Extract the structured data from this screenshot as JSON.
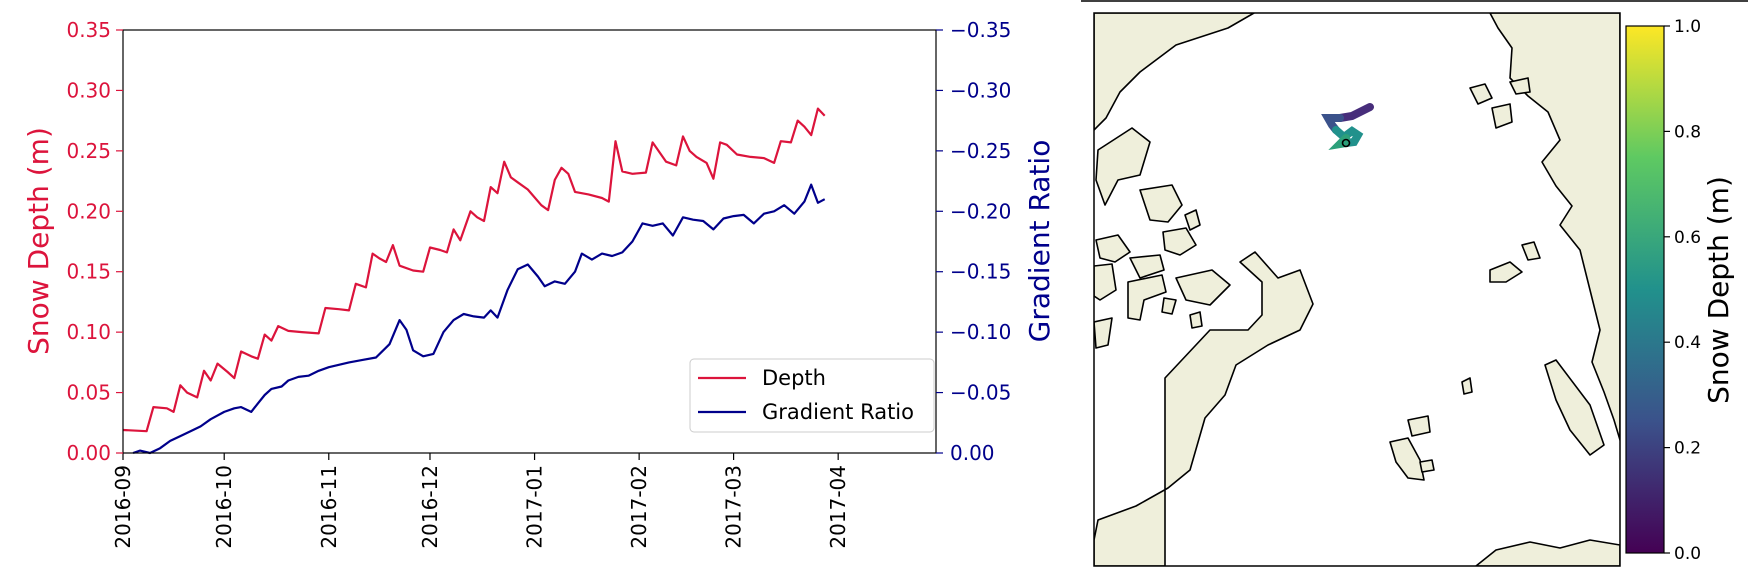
{
  "chart_data": [
    {
      "type": "line",
      "xlabel": "",
      "ylabel": "Snow Depth (m)",
      "y2label": "Gradient Ratio",
      "x_ticks": [
        "2016-09",
        "2016-10",
        "2016-11",
        "2016-12",
        "2017-01",
        "2017-02",
        "2017-03",
        "2017-04"
      ],
      "y_ticks": [
        "0.00",
        "0.05",
        "0.10",
        "0.15",
        "0.20",
        "0.25",
        "0.30",
        "0.35"
      ],
      "y2_ticks": [
        "0.00",
        "−0.05",
        "−0.10",
        "−0.15",
        "−0.20",
        "−0.25",
        "−0.30",
        "−0.35"
      ],
      "xlim": [
        "2016-09-01",
        "2017-04-30"
      ],
      "ylim": [
        0,
        0.35
      ],
      "y2lim": [
        0,
        -0.35
      ],
      "y2_inverted": true,
      "grid": false,
      "legend": "lower-right",
      "colors": {
        "depth": "#dc143c",
        "gradient": "#00008b"
      },
      "series": [
        {
          "name": "Depth",
          "axis": "left",
          "points": [
            [
              "2016-09-01",
              0.019
            ],
            [
              "2016-09-08",
              0.018
            ],
            [
              "2016-09-10",
              0.038
            ],
            [
              "2016-09-14",
              0.037
            ],
            [
              "2016-09-16",
              0.034
            ],
            [
              "2016-09-18",
              0.056
            ],
            [
              "2016-09-20",
              0.05
            ],
            [
              "2016-09-23",
              0.046
            ],
            [
              "2016-09-25",
              0.068
            ],
            [
              "2016-09-27",
              0.06
            ],
            [
              "2016-09-29",
              0.074
            ],
            [
              "2016-10-02",
              0.067
            ],
            [
              "2016-10-04",
              0.062
            ],
            [
              "2016-10-06",
              0.084
            ],
            [
              "2016-10-09",
              0.08
            ],
            [
              "2016-10-11",
              0.078
            ],
            [
              "2016-10-13",
              0.098
            ],
            [
              "2016-10-15",
              0.093
            ],
            [
              "2016-10-17",
              0.105
            ],
            [
              "2016-10-20",
              0.101
            ],
            [
              "2016-10-24",
              0.1
            ],
            [
              "2016-10-29",
              0.099
            ],
            [
              "2016-10-31",
              0.12
            ],
            [
              "2016-11-04",
              0.119
            ],
            [
              "2016-11-07",
              0.118
            ],
            [
              "2016-11-09",
              0.14
            ],
            [
              "2016-11-12",
              0.137
            ],
            [
              "2016-11-14",
              0.165
            ],
            [
              "2016-11-16",
              0.161
            ],
            [
              "2016-11-18",
              0.158
            ],
            [
              "2016-11-20",
              0.172
            ],
            [
              "2016-11-22",
              0.155
            ],
            [
              "2016-11-26",
              0.151
            ],
            [
              "2016-11-29",
              0.15
            ],
            [
              "2016-12-01",
              0.17
            ],
            [
              "2016-12-04",
              0.168
            ],
            [
              "2016-12-06",
              0.166
            ],
            [
              "2016-12-08",
              0.185
            ],
            [
              "2016-12-10",
              0.176
            ],
            [
              "2016-12-13",
              0.2
            ],
            [
              "2016-12-15",
              0.195
            ],
            [
              "2016-12-17",
              0.192
            ],
            [
              "2016-12-19",
              0.22
            ],
            [
              "2016-12-21",
              0.215
            ],
            [
              "2016-12-23",
              0.241
            ],
            [
              "2016-12-25",
              0.228
            ],
            [
              "2016-12-27",
              0.224
            ],
            [
              "2016-12-30",
              0.218
            ],
            [
              "2017-01-03",
              0.205
            ],
            [
              "2017-01-05",
              0.201
            ],
            [
              "2017-01-07",
              0.226
            ],
            [
              "2017-01-09",
              0.236
            ],
            [
              "2017-01-11",
              0.231
            ],
            [
              "2017-01-13",
              0.216
            ],
            [
              "2017-01-17",
              0.214
            ],
            [
              "2017-01-21",
              0.211
            ],
            [
              "2017-01-23",
              0.208
            ],
            [
              "2017-01-25",
              0.258
            ],
            [
              "2017-01-27",
              0.233
            ],
            [
              "2017-01-30",
              0.231
            ],
            [
              "2017-02-03",
              0.232
            ],
            [
              "2017-02-05",
              0.257
            ],
            [
              "2017-02-07",
              0.249
            ],
            [
              "2017-02-09",
              0.241
            ],
            [
              "2017-02-12",
              0.238
            ],
            [
              "2017-02-14",
              0.262
            ],
            [
              "2017-02-16",
              0.25
            ],
            [
              "2017-02-18",
              0.245
            ],
            [
              "2017-02-21",
              0.24
            ],
            [
              "2017-02-23",
              0.227
            ],
            [
              "2017-02-25",
              0.257
            ],
            [
              "2017-02-27",
              0.255
            ],
            [
              "2017-03-02",
              0.247
            ],
            [
              "2017-03-06",
              0.245
            ],
            [
              "2017-03-10",
              0.244
            ],
            [
              "2017-03-13",
              0.24
            ],
            [
              "2017-03-15",
              0.258
            ],
            [
              "2017-03-18",
              0.257
            ],
            [
              "2017-03-20",
              0.275
            ],
            [
              "2017-03-22",
              0.27
            ],
            [
              "2017-03-24",
              0.263
            ],
            [
              "2017-03-26",
              0.285
            ],
            [
              "2017-03-28",
              0.279
            ]
          ]
        },
        {
          "name": "Gradient Ratio",
          "axis": "right",
          "points": [
            [
              "2016-09-04",
              0.0
            ],
            [
              "2016-09-06",
              -0.002
            ],
            [
              "2016-09-09",
              0.0
            ],
            [
              "2016-09-12",
              -0.004
            ],
            [
              "2016-09-15",
              -0.01
            ],
            [
              "2016-09-18",
              -0.014
            ],
            [
              "2016-09-21",
              -0.018
            ],
            [
              "2016-09-24",
              -0.022
            ],
            [
              "2016-09-27",
              -0.028
            ],
            [
              "2016-10-01",
              -0.034
            ],
            [
              "2016-10-04",
              -0.037
            ],
            [
              "2016-10-06",
              -0.038
            ],
            [
              "2016-10-09",
              -0.034
            ],
            [
              "2016-10-11",
              -0.041
            ],
            [
              "2016-10-13",
              -0.048
            ],
            [
              "2016-10-15",
              -0.053
            ],
            [
              "2016-10-18",
              -0.055
            ],
            [
              "2016-10-20",
              -0.06
            ],
            [
              "2016-10-23",
              -0.063
            ],
            [
              "2016-10-26",
              -0.064
            ],
            [
              "2016-10-29",
              -0.068
            ],
            [
              "2016-11-01",
              -0.071
            ],
            [
              "2016-11-04",
              -0.073
            ],
            [
              "2016-11-07",
              -0.075
            ],
            [
              "2016-11-11",
              -0.077
            ],
            [
              "2016-11-15",
              -0.079
            ],
            [
              "2016-11-19",
              -0.09
            ],
            [
              "2016-11-22",
              -0.11
            ],
            [
              "2016-11-24",
              -0.102
            ],
            [
              "2016-11-26",
              -0.085
            ],
            [
              "2016-11-29",
              -0.08
            ],
            [
              "2016-12-02",
              -0.082
            ],
            [
              "2016-12-05",
              -0.1
            ],
            [
              "2016-12-08",
              -0.11
            ],
            [
              "2016-12-11",
              -0.115
            ],
            [
              "2016-12-14",
              -0.113
            ],
            [
              "2016-12-17",
              -0.112
            ],
            [
              "2016-12-19",
              -0.118
            ],
            [
              "2016-12-21",
              -0.112
            ],
            [
              "2016-12-24",
              -0.135
            ],
            [
              "2016-12-27",
              -0.152
            ],
            [
              "2016-12-30",
              -0.156
            ],
            [
              "2017-01-02",
              -0.146
            ],
            [
              "2017-01-04",
              -0.138
            ],
            [
              "2017-01-07",
              -0.142
            ],
            [
              "2017-01-10",
              -0.14
            ],
            [
              "2017-01-13",
              -0.15
            ],
            [
              "2017-01-15",
              -0.165
            ],
            [
              "2017-01-18",
              -0.16
            ],
            [
              "2017-01-21",
              -0.165
            ],
            [
              "2017-01-24",
              -0.163
            ],
            [
              "2017-01-27",
              -0.166
            ],
            [
              "2017-01-30",
              -0.175
            ],
            [
              "2017-02-02",
              -0.19
            ],
            [
              "2017-02-05",
              -0.188
            ],
            [
              "2017-02-08",
              -0.19
            ],
            [
              "2017-02-11",
              -0.18
            ],
            [
              "2017-02-14",
              -0.195
            ],
            [
              "2017-02-17",
              -0.193
            ],
            [
              "2017-02-20",
              -0.192
            ],
            [
              "2017-02-23",
              -0.185
            ],
            [
              "2017-02-26",
              -0.194
            ],
            [
              "2017-03-01",
              -0.196
            ],
            [
              "2017-03-04",
              -0.197
            ],
            [
              "2017-03-07",
              -0.19
            ],
            [
              "2017-03-10",
              -0.198
            ],
            [
              "2017-03-13",
              -0.2
            ],
            [
              "2017-03-16",
              -0.205
            ],
            [
              "2017-03-19",
              -0.198
            ],
            [
              "2017-03-22",
              -0.208
            ],
            [
              "2017-03-24",
              -0.222
            ],
            [
              "2017-03-26",
              -0.207
            ],
            [
              "2017-03-28",
              -0.21
            ]
          ]
        }
      ]
    },
    {
      "type": "map",
      "colorbar_label": "Snow Depth (m)",
      "colorbar_ticks": [
        "0.0",
        "0.2",
        "0.4",
        "0.6",
        "0.8",
        "1.0"
      ],
      "colorbar_range": [
        0,
        1
      ],
      "colormap": [
        "#440154",
        "#3b528b",
        "#21918c",
        "#5ec962",
        "#fde725"
      ],
      "land_color": "#efefdb",
      "ocean_color": "#ffffff"
    }
  ]
}
